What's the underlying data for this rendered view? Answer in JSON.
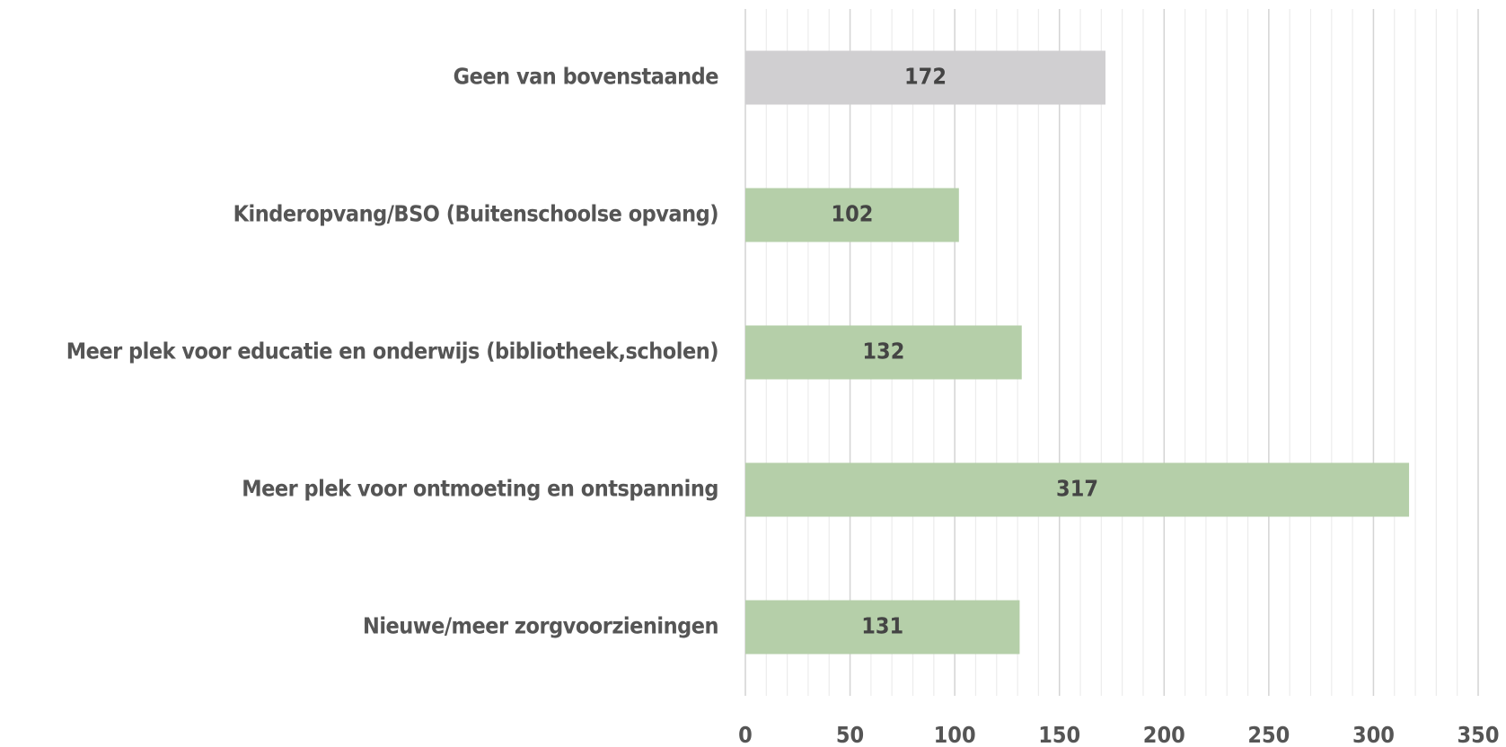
{
  "chart_data": {
    "type": "barh",
    "categories": [
      "Geen van bovenstaande",
      "Kinderopvang/BSO (Buitenschoolse opvang)",
      "Meer plek voor educatie en onderwijs (bibliotheek,scholen)",
      "Meer plek voor ontmoeting en ontspanning",
      "Nieuwe/meer zorgvoorzieningen"
    ],
    "values": [
      172,
      102,
      132,
      317,
      131
    ],
    "colors": [
      "#d0cfd1",
      "#b5cfa9",
      "#b5cfa9",
      "#b5cfa9",
      "#b5cfa9"
    ],
    "xlim": [
      0,
      350
    ],
    "xticks": [
      0,
      50,
      100,
      150,
      200,
      250,
      300,
      350
    ],
    "grid": true,
    "minor_grid": true
  }
}
